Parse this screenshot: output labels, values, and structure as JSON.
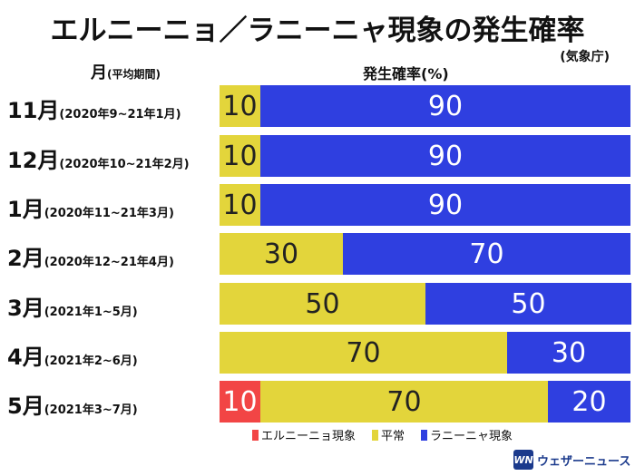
{
  "chart_data": {
    "type": "bar",
    "stacked": true,
    "orientation": "horizontal",
    "title": "エルニーニョ／ラニーニャ現象の発生確率",
    "source": "(気象庁)",
    "month_header": "月",
    "period_header": "(平均期間)",
    "value_header": "発生確率(%)",
    "categories": [
      {
        "month": "11月",
        "period": "(2020年9~21年1月)"
      },
      {
        "month": "12月",
        "period": "(2020年10~21年2月)"
      },
      {
        "month": "1月",
        "period": "(2020年11~21年3月)"
      },
      {
        "month": "2月",
        "period": "(2020年12~21年4月)"
      },
      {
        "month": "3月",
        "period": "(2021年1~5月)"
      },
      {
        "month": "4月",
        "period": "(2021年2~6月)"
      },
      {
        "month": "5月",
        "period": "(2021年3~7月)"
      }
    ],
    "series": [
      {
        "name": "エルニーニョ現象",
        "color": "#f24545",
        "values": [
          0,
          0,
          0,
          0,
          0,
          0,
          10
        ]
      },
      {
        "name": "平常",
        "color": "#e3d53b",
        "values": [
          10,
          10,
          10,
          30,
          50,
          70,
          70
        ]
      },
      {
        "name": "ラニーニャ現象",
        "color": "#2f3fe0",
        "values": [
          90,
          90,
          90,
          70,
          50,
          30,
          20
        ]
      }
    ],
    "xlim": [
      0,
      100
    ]
  },
  "branding": {
    "logo_mark": "WN",
    "logo_text": "ウェザーニュース"
  }
}
